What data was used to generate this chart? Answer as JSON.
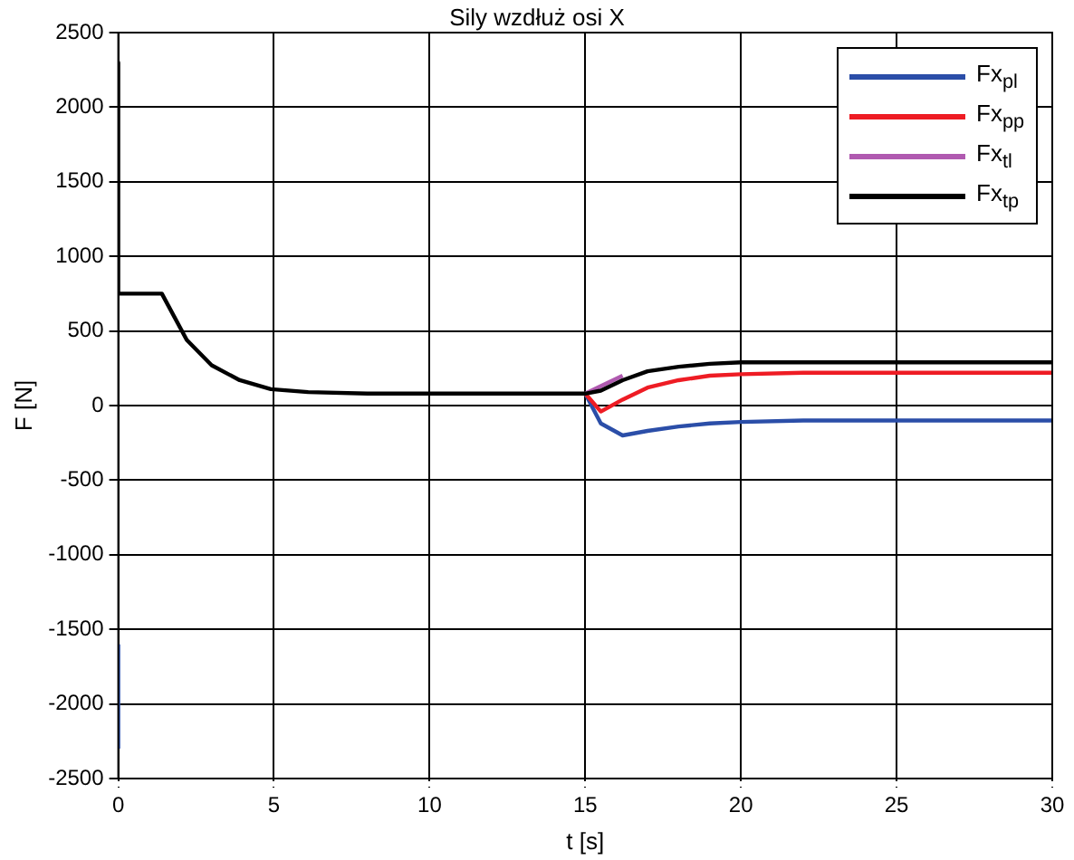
{
  "chart_data": {
    "type": "line",
    "title": "Sily wzdłuż osi X",
    "xlabel": "t [s]",
    "ylabel": "F [N]",
    "x": [
      0,
      0,
      1.4,
      2.2,
      3,
      3.9,
      4.9,
      6.1,
      8,
      10,
      15,
      15.5,
      16.2,
      17,
      18,
      19,
      20,
      22,
      25,
      30
    ],
    "series": [
      {
        "name": "Fx$_{pl}$",
        "color": "#2b4ea8",
        "x": [
          0,
          0,
          null,
          15,
          15.5,
          16.2,
          17,
          18,
          19,
          20,
          22,
          25,
          30
        ],
        "values": [
          -2300,
          -1600,
          null,
          80,
          -120,
          -200,
          -170,
          -140,
          -120,
          -110,
          -100,
          -100,
          -100
        ]
      },
      {
        "name": "Fx$_{pp}$",
        "color": "#ee1c24",
        "x": [
          15,
          15.5,
          16.2,
          17,
          18,
          19,
          20,
          22,
          25,
          30
        ],
        "values": [
          80,
          -40,
          40,
          120,
          170,
          200,
          210,
          220,
          220,
          220
        ]
      },
      {
        "name": "Fx$_{tl}$",
        "color": "#b05ab0",
        "x": [
          15,
          15.5,
          16.2
        ],
        "values": [
          80,
          130,
          200
        ]
      },
      {
        "name": "Fx$_{tp}$",
        "color": "#000000",
        "values": [
          2300,
          750,
          750,
          440,
          270,
          170,
          110,
          90,
          80,
          80,
          80,
          100,
          170,
          230,
          260,
          280,
          290,
          290,
          290,
          290
        ]
      }
    ],
    "xlim": [
      0,
      30
    ],
    "xticks": [
      0,
      5,
      10,
      15,
      20,
      25,
      30
    ],
    "ylim": [
      -2500,
      2500
    ],
    "yticks": [
      -2500,
      -2000,
      -1500,
      -1000,
      -500,
      0,
      500,
      1000,
      1500,
      2000,
      2500
    ],
    "grid": true,
    "legend": "top right",
    "marker": "none",
    "line_style": "solid"
  }
}
